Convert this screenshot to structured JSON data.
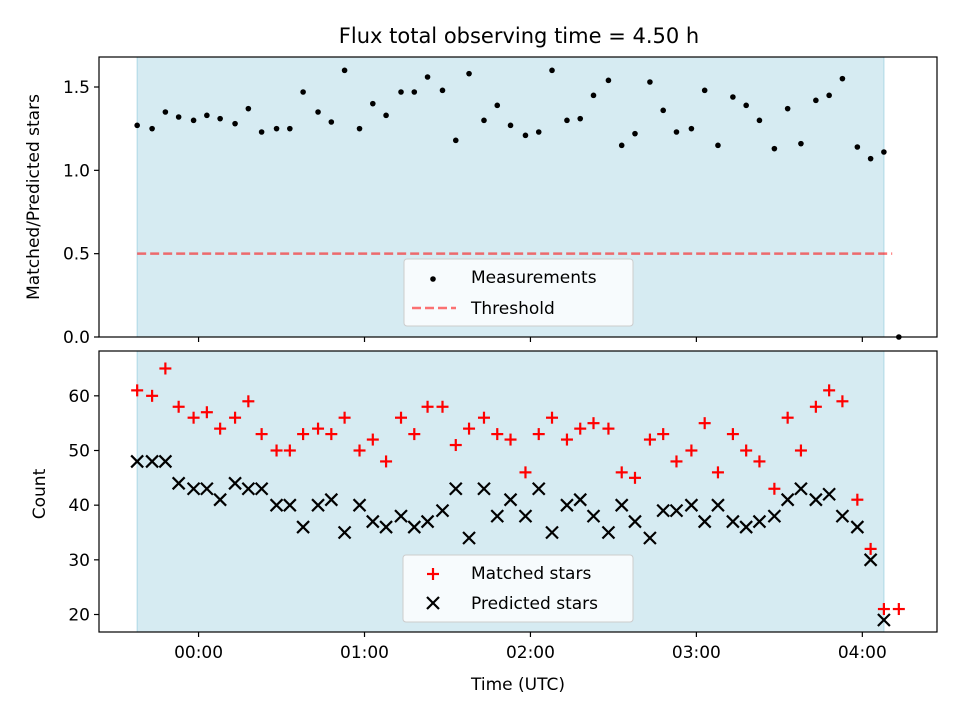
{
  "title": "Flux total observing time = 4.50 h",
  "colors": {
    "shade": "#add8e6",
    "matched": "#ff0000",
    "predicted": "#000000",
    "threshold": "#ff0000",
    "measurements": "#000000"
  },
  "chart_data": [
    {
      "type": "scatter",
      "ylabel": "Matched/Predicted stars",
      "ylim": [
        0,
        1.68
      ],
      "yticks": [
        "0.0",
        "0.5",
        "1.0",
        "1.5"
      ],
      "xlim_hours": [
        -0.6,
        4.45
      ],
      "shaded_span_hours": [
        -0.37,
        4.13
      ],
      "threshold": 0.5,
      "threshold_span_hours": [
        -0.37,
        4.18
      ],
      "legend": {
        "placement": "lower center",
        "entries": [
          "Measurements",
          "Threshold"
        ]
      },
      "series": [
        {
          "name": "Measurements",
          "x_hours": [
            -0.37,
            -0.28,
            -0.2,
            -0.12,
            -0.03,
            0.05,
            0.13,
            0.22,
            0.3,
            0.38,
            0.47,
            0.55,
            0.63,
            0.72,
            0.8,
            0.88,
            0.97,
            1.05,
            1.13,
            1.22,
            1.3,
            1.38,
            1.47,
            1.55,
            1.63,
            1.72,
            1.8,
            1.88,
            1.97,
            2.05,
            2.13,
            2.22,
            2.3,
            2.38,
            2.47,
            2.55,
            2.63,
            2.72,
            2.8,
            2.88,
            2.97,
            3.05,
            3.13,
            3.22,
            3.3,
            3.38,
            3.47,
            3.55,
            3.63,
            3.72,
            3.8,
            3.88,
            3.97,
            4.05,
            4.13,
            4.22
          ],
          "values": [
            1.27,
            1.25,
            1.35,
            1.32,
            1.3,
            1.33,
            1.31,
            1.28,
            1.37,
            1.23,
            1.25,
            1.25,
            1.47,
            1.35,
            1.29,
            1.6,
            1.25,
            1.4,
            1.33,
            1.47,
            1.47,
            1.56,
            1.48,
            1.18,
            1.58,
            1.3,
            1.39,
            1.27,
            1.21,
            1.23,
            1.6,
            1.3,
            1.31,
            1.45,
            1.54,
            1.15,
            1.22,
            1.53,
            1.36,
            1.23,
            1.25,
            1.48,
            1.15,
            1.44,
            1.39,
            1.3,
            1.13,
            1.37,
            1.16,
            1.42,
            1.45,
            1.55,
            1.14,
            1.07,
            1.11,
            0.0
          ]
        }
      ]
    },
    {
      "type": "scatter",
      "xlabel": "Time (UTC)",
      "ylabel": "Count",
      "ylim": [
        16.8,
        68.2
      ],
      "yticks": [
        "20",
        "30",
        "40",
        "50",
        "60"
      ],
      "xticks": [
        "00:00",
        "01:00",
        "02:00",
        "03:00",
        "04:00"
      ],
      "xlim_hours": [
        -0.6,
        4.45
      ],
      "shaded_span_hours": [
        -0.37,
        4.13
      ],
      "legend": {
        "placement": "lower center",
        "entries": [
          "Matched stars",
          "Predicted stars"
        ]
      },
      "series": [
        {
          "name": "Matched stars",
          "x_hours": [
            -0.37,
            -0.28,
            -0.2,
            -0.12,
            -0.03,
            0.05,
            0.13,
            0.22,
            0.3,
            0.38,
            0.47,
            0.55,
            0.63,
            0.72,
            0.8,
            0.88,
            0.97,
            1.05,
            1.13,
            1.22,
            1.3,
            1.38,
            1.47,
            1.55,
            1.63,
            1.72,
            1.8,
            1.88,
            1.97,
            2.05,
            2.13,
            2.22,
            2.3,
            2.38,
            2.47,
            2.55,
            2.63,
            2.72,
            2.8,
            2.88,
            2.97,
            3.05,
            3.13,
            3.22,
            3.3,
            3.38,
            3.47,
            3.55,
            3.63,
            3.72,
            3.8,
            3.88,
            3.97,
            4.05,
            4.13,
            4.22
          ],
          "values": [
            61,
            60,
            65,
            58,
            56,
            57,
            54,
            56,
            59,
            53,
            50,
            50,
            53,
            54,
            53,
            56,
            50,
            52,
            48,
            56,
            53,
            58,
            58,
            51,
            54,
            56,
            53,
            52,
            46,
            53,
            56,
            52,
            54,
            55,
            54,
            46,
            45,
            52,
            53,
            48,
            50,
            55,
            46,
            53,
            50,
            48,
            43,
            56,
            50,
            58,
            61,
            59,
            41,
            32,
            21,
            21
          ]
        },
        {
          "name": "Predicted stars",
          "x_hours": [
            -0.37,
            -0.28,
            -0.2,
            -0.12,
            -0.03,
            0.05,
            0.13,
            0.22,
            0.3,
            0.38,
            0.47,
            0.55,
            0.63,
            0.72,
            0.8,
            0.88,
            0.97,
            1.05,
            1.13,
            1.22,
            1.3,
            1.38,
            1.47,
            1.55,
            1.63,
            1.72,
            1.8,
            1.88,
            1.97,
            2.05,
            2.13,
            2.22,
            2.3,
            2.38,
            2.47,
            2.55,
            2.63,
            2.72,
            2.8,
            2.88,
            2.97,
            3.05,
            3.13,
            3.22,
            3.3,
            3.38,
            3.47,
            3.55,
            3.63,
            3.72,
            3.8,
            3.88,
            3.97,
            4.05,
            4.13
          ],
          "values": [
            48,
            48,
            48,
            44,
            43,
            43,
            41,
            44,
            43,
            43,
            40,
            40,
            36,
            40,
            41,
            35,
            40,
            37,
            36,
            38,
            36,
            37,
            39,
            43,
            34,
            43,
            38,
            41,
            38,
            43,
            35,
            40,
            41,
            38,
            35,
            40,
            37,
            34,
            39,
            39,
            40,
            37,
            40,
            37,
            36,
            37,
            38,
            41,
            43,
            41,
            42,
            38,
            36,
            30,
            19
          ]
        }
      ]
    }
  ]
}
